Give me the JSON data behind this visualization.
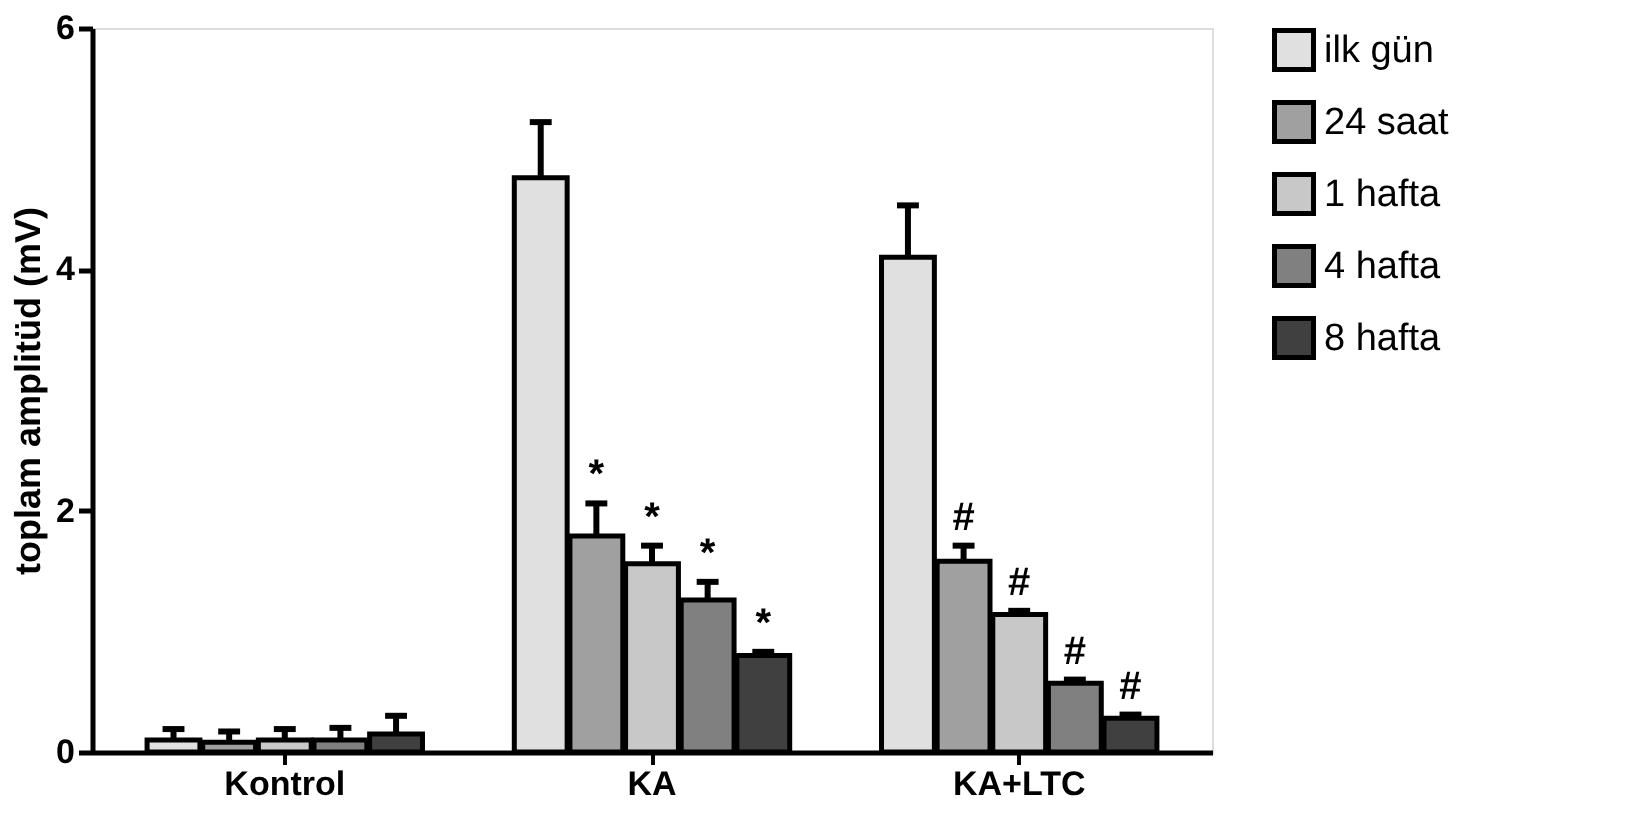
{
  "chart_data": {
    "type": "bar",
    "ylabel": "toplam amplitüd (mV)",
    "categories": [
      "Kontrol",
      "KA",
      "KA+LTC"
    ],
    "series": [
      {
        "name": "ilk gün",
        "color": "#e0e0e0",
        "values": [
          0.1,
          4.76,
          4.1
        ],
        "errors": [
          [
            0.1,
            0.19
          ],
          [
            4.76,
            5.22
          ],
          [
            4.1,
            4.53
          ]
        ]
      },
      {
        "name": "24 saat",
        "color": "#a0a0a0",
        "values": [
          0.08,
          1.79,
          1.58
        ],
        "errors": [
          [
            0.08,
            0.17
          ],
          [
            1.79,
            2.06
          ],
          [
            1.58,
            1.71
          ]
        ]
      },
      {
        "name": "1 hafta",
        "color": "#c8c8c8",
        "values": [
          0.1,
          1.56,
          1.14
        ],
        "errors": [
          [
            0.1,
            0.19
          ],
          [
            1.56,
            1.71
          ],
          [
            1.14,
            1.17
          ]
        ]
      },
      {
        "name": "4 hafta",
        "color": "#808080",
        "values": [
          0.1,
          1.26,
          0.57
        ],
        "errors": [
          [
            0.1,
            0.2
          ],
          [
            1.26,
            1.41
          ],
          [
            0.57,
            0.6
          ]
        ]
      },
      {
        "name": "8 hafta",
        "color": "#404040",
        "values": [
          0.15,
          0.8,
          0.28
        ],
        "errors": [
          [
            0.15,
            0.3
          ],
          [
            0.8,
            0.83
          ],
          [
            0.28,
            0.31
          ]
        ]
      }
    ],
    "annotations": [
      "*",
      "*",
      "*",
      "*",
      "#",
      "#",
      "#",
      "#"
    ],
    "ylim": [
      0,
      6
    ],
    "yticks": [
      0,
      2,
      4,
      6
    ],
    "grid": false,
    "legend": "top right"
  }
}
